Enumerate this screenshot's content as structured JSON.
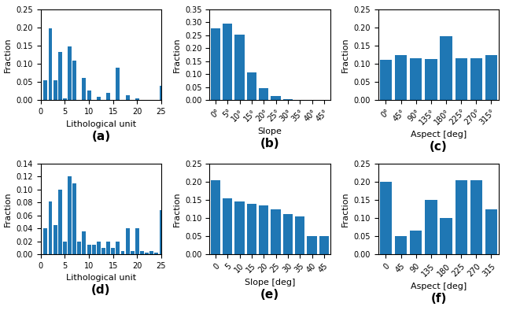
{
  "chart_data": [
    {
      "type": "bar",
      "x": [
        1,
        2,
        3,
        4,
        5,
        6,
        7,
        8,
        9,
        10,
        11,
        12,
        13,
        14,
        15,
        16,
        17,
        18,
        19,
        20,
        21,
        22,
        23,
        24,
        25
      ],
      "values": [
        0.054,
        0.197,
        0.054,
        0.133,
        0.005,
        0.148,
        0.11,
        0.0,
        0.062,
        0.026,
        0.0,
        0.01,
        0.0,
        0.021,
        0.0,
        0.09,
        0.0,
        0.013,
        0.0,
        0.005,
        0.0,
        0.001,
        0.0,
        0.0,
        0.04
      ],
      "xlabel": "Lithological unit",
      "ylabel": "Fraction",
      "xlim": [
        0,
        25
      ],
      "xticks": [
        0,
        5,
        10,
        15,
        20,
        25
      ],
      "ylim": [
        0,
        0.25
      ],
      "yticks": [
        {
          "value": 0,
          "label": "0.00"
        },
        {
          "value": 0.05,
          "label": "0.05"
        },
        {
          "value": 0.1,
          "label": "0.10"
        },
        {
          "value": 0.15,
          "label": "0.15"
        },
        {
          "value": 0.2,
          "label": "0.20"
        },
        {
          "value": 0.25,
          "label": "0.25"
        }
      ],
      "annotation": "(a)"
    },
    {
      "type": "bar",
      "categories": [
        "0°",
        "5°",
        "10°",
        "15°",
        "20°",
        "25°",
        "30°",
        "35°",
        "40°",
        "45°"
      ],
      "values": [
        0.278,
        0.295,
        0.253,
        0.107,
        0.046,
        0.016,
        0.004,
        0.001,
        0.0,
        0.0
      ],
      "xlabel": "Slope",
      "ylabel": "Fraction",
      "ylim": [
        0,
        0.35
      ],
      "yticks": [
        {
          "value": 0,
          "label": "0.00"
        },
        {
          "value": 0.05,
          "label": "0.05"
        },
        {
          "value": 0.1,
          "label": "0.10"
        },
        {
          "value": 0.15,
          "label": "0.15"
        },
        {
          "value": 0.2,
          "label": "0.20"
        },
        {
          "value": 0.25,
          "label": "0.25"
        },
        {
          "value": 0.3,
          "label": "0.30"
        },
        {
          "value": 0.35,
          "label": "0.35"
        }
      ],
      "annotation": "(b)"
    },
    {
      "type": "bar",
      "categories": [
        "0°",
        "45°",
        "90°",
        "135°",
        "180°",
        "225°",
        "270°",
        "315°"
      ],
      "values": [
        0.112,
        0.125,
        0.115,
        0.113,
        0.176,
        0.115,
        0.115,
        0.125
      ],
      "xlabel": "Aspect [deg]",
      "ylabel": "Fraction",
      "ylim": [
        0,
        0.25
      ],
      "yticks": [
        {
          "value": 0,
          "label": "0.00"
        },
        {
          "value": 0.05,
          "label": "0.05"
        },
        {
          "value": 0.1,
          "label": "0.10"
        },
        {
          "value": 0.15,
          "label": "0.15"
        },
        {
          "value": 0.2,
          "label": "0.20"
        },
        {
          "value": 0.25,
          "label": "0.25"
        }
      ],
      "annotation": "(c)"
    },
    {
      "type": "bar",
      "x": [
        1,
        2,
        3,
        4,
        5,
        6,
        7,
        8,
        9,
        10,
        11,
        12,
        13,
        14,
        15,
        16,
        17,
        18,
        19,
        20,
        21,
        22,
        23,
        24,
        25
      ],
      "values": [
        0.04,
        0.082,
        0.045,
        0.1,
        0.02,
        0.12,
        0.11,
        0.02,
        0.035,
        0.015,
        0.015,
        0.02,
        0.01,
        0.02,
        0.01,
        0.02,
        0.005,
        0.04,
        0.005,
        0.04,
        0.005,
        0.003,
        0.005,
        0.003,
        0.068
      ],
      "xlabel": "Lithological unit",
      "ylabel": "Fraction",
      "xlim": [
        0,
        25
      ],
      "xticks": [
        0,
        5,
        10,
        15,
        20,
        25
      ],
      "ylim": [
        0,
        0.14
      ],
      "yticks": [
        {
          "value": 0,
          "label": "0.00"
        },
        {
          "value": 0.02,
          "label": "0.02"
        },
        {
          "value": 0.04,
          "label": "0.04"
        },
        {
          "value": 0.06,
          "label": "0.06"
        },
        {
          "value": 0.08,
          "label": "0.08"
        },
        {
          "value": 0.1,
          "label": "0.10"
        },
        {
          "value": 0.12,
          "label": "0.12"
        },
        {
          "value": 0.14,
          "label": "0.14"
        }
      ],
      "annotation": "(d)"
    },
    {
      "type": "bar",
      "categories": [
        "0",
        "5",
        "10",
        "15",
        "20",
        "25",
        "30",
        "35",
        "40",
        "45"
      ],
      "values": [
        0.205,
        0.155,
        0.145,
        0.14,
        0.135,
        0.125,
        0.11,
        0.105,
        0.05,
        0.05
      ],
      "xlabel": "Slope [deg]",
      "ylabel": "Fraction",
      "ylim": [
        0,
        0.25
      ],
      "yticks": [
        {
          "value": 0,
          "label": "0.00"
        },
        {
          "value": 0.05,
          "label": "0.05"
        },
        {
          "value": 0.1,
          "label": "0.10"
        },
        {
          "value": 0.15,
          "label": "0.15"
        },
        {
          "value": 0.2,
          "label": "0.20"
        },
        {
          "value": 0.25,
          "label": "0.25"
        }
      ],
      "annotation": "(e)"
    },
    {
      "type": "bar",
      "categories": [
        "0",
        "45",
        "90",
        "135",
        "180",
        "225",
        "270",
        "315"
      ],
      "values": [
        0.2,
        0.05,
        0.065,
        0.15,
        0.1,
        0.205,
        0.205,
        0.125
      ],
      "xlabel": "Aspect [deg]",
      "ylabel": "Fraction",
      "ylim": [
        0,
        0.25
      ],
      "yticks": [
        {
          "value": 0,
          "label": "0.00"
        },
        {
          "value": 0.05,
          "label": "0.05"
        },
        {
          "value": 0.1,
          "label": "0.10"
        },
        {
          "value": 0.15,
          "label": "0.15"
        },
        {
          "value": 0.2,
          "label": "0.20"
        },
        {
          "value": 0.25,
          "label": "0.25"
        }
      ],
      "annotation": "(f)"
    }
  ]
}
